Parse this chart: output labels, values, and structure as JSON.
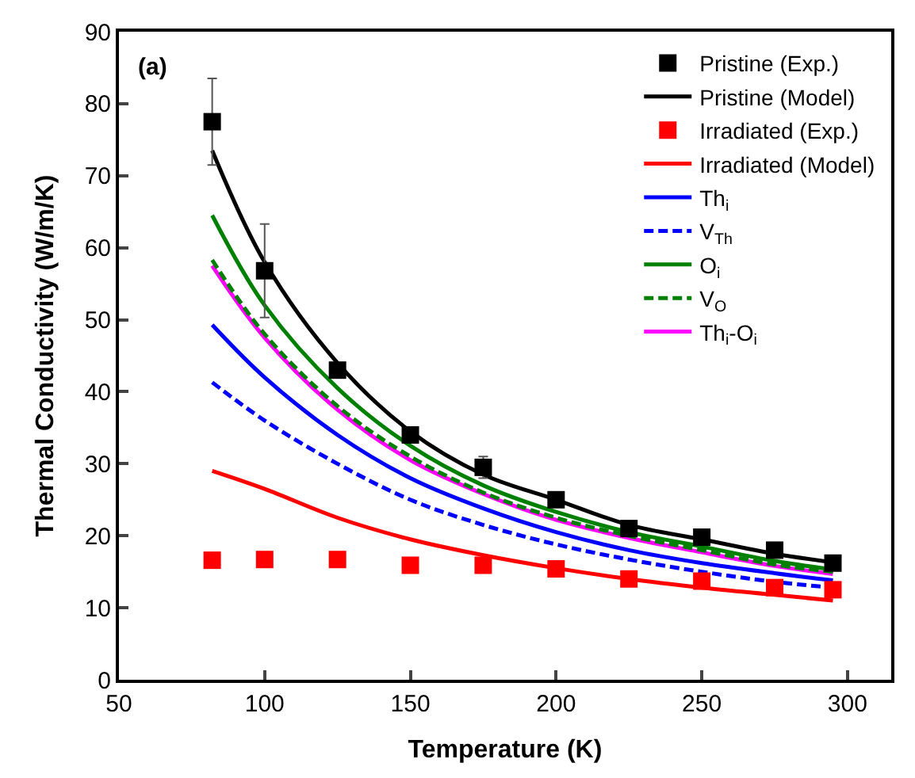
{
  "chart_data": {
    "type": "line",
    "xlabel": "Temperature (K)",
    "ylabel": "Thermal Conductivity (W/m/K)",
    "annotations": [
      "(a)"
    ],
    "xlim": [
      50,
      315
    ],
    "xticks": [
      50,
      100,
      150,
      200,
      250,
      300
    ],
    "ylim": [
      0,
      90
    ],
    "yticks": [
      0,
      10,
      20,
      30,
      40,
      50,
      60,
      70,
      80,
      90
    ],
    "grid": false,
    "legend": "top right",
    "x": [
      82,
      100,
      125,
      150,
      175,
      200,
      225,
      250,
      275,
      295
    ],
    "series": [
      {
        "name": "Pristine (Exp.)",
        "type": "scatter",
        "marker": "square",
        "color": "#000000",
        "values": [
          77.5,
          56.8,
          43,
          34,
          29.5,
          25,
          21,
          19.8,
          18,
          16.2
        ],
        "errors": [
          6,
          6.5,
          null,
          null,
          1.5,
          null,
          null,
          null,
          null,
          null
        ]
      },
      {
        "name": "Pristine (Model)",
        "line_style": "solid",
        "color": "#000000",
        "values": [
          73.5,
          58,
          44,
          34.5,
          28.5,
          25,
          21.5,
          19.5,
          17.5,
          16.3
        ]
      },
      {
        "name": "Irradiated (Exp.)",
        "type": "scatter",
        "marker": "square",
        "color": "#ff0000",
        "values": [
          16.6,
          16.7,
          16.7,
          15.9,
          15.9,
          15.4,
          14.0,
          13.7,
          12.8,
          12.5
        ]
      },
      {
        "name": "Irradiated (Model)",
        "line_style": "solid",
        "color": "#ff0000",
        "values": [
          29,
          26.5,
          22.5,
          19.5,
          17.3,
          15.5,
          14,
          12.8,
          11.8,
          11
        ]
      },
      {
        "name": "Th$_{i}$",
        "line_style": "solid",
        "color": "#0000ff",
        "values": [
          49.3,
          42,
          34,
          28,
          23.8,
          20.5,
          18,
          16.2,
          14.8,
          13.8
        ]
      },
      {
        "name": "V$_{Th}$",
        "line_style": "dashed",
        "color": "#0000ff",
        "values": [
          41.3,
          36,
          30,
          25,
          21.5,
          18.8,
          16.7,
          15,
          13.6,
          12.8
        ]
      },
      {
        "name": "O$_{i}$",
        "line_style": "solid",
        "color": "#008000",
        "values": [
          64.5,
          52,
          40.5,
          32.5,
          27,
          23.3,
          20.5,
          18.5,
          16.5,
          15.3
        ]
      },
      {
        "name": "V$_{O}$",
        "line_style": "dashed",
        "color": "#008000",
        "values": [
          58.3,
          48,
          38,
          31,
          26,
          22.5,
          20,
          18,
          16,
          15
        ]
      },
      {
        "name": "Th$_{i}$-O$_{i}$",
        "line_style": "solid",
        "color": "#ff00ff",
        "values": [
          57.5,
          47.5,
          37.5,
          30.5,
          25.8,
          22.2,
          19.7,
          17.7,
          15.8,
          14.7
        ]
      }
    ]
  }
}
